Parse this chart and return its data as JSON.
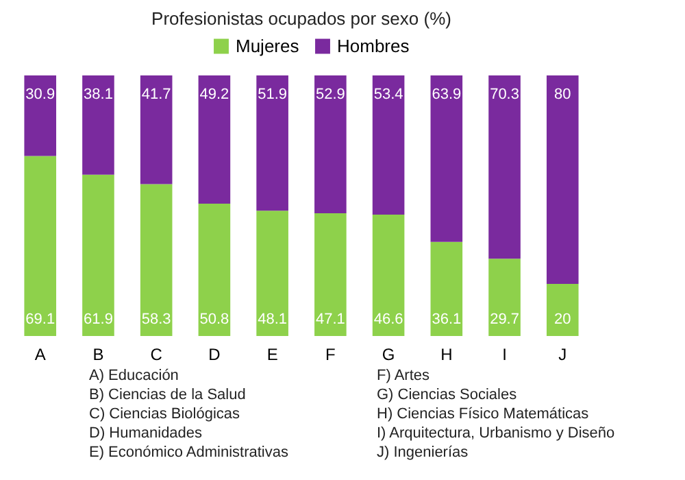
{
  "chart_data": {
    "type": "bar",
    "title": "Profesionistas ocupados por sexo (%)",
    "stacked": true,
    "data_labels": true,
    "legend": "top",
    "tick_labels": "x",
    "grid": false,
    "ylim": [
      0,
      100
    ],
    "categories": [
      "A",
      "B",
      "C",
      "D",
      "E",
      "F",
      "G",
      "H",
      "I",
      "J"
    ],
    "series": [
      {
        "name": "Mujeres",
        "color": "#8ed14b",
        "values": [
          69.1,
          61.9,
          58.3,
          50.8,
          48.1,
          47.1,
          46.6,
          36.1,
          29.7,
          20
        ]
      },
      {
        "name": "Hombres",
        "color": "#7a2a9e",
        "values": [
          30.9,
          38.1,
          41.7,
          49.2,
          51.9,
          52.9,
          53.4,
          63.9,
          70.3,
          80
        ]
      }
    ],
    "annotations": [
      "A) Educación",
      "B) Ciencias de la Salud",
      "C) Ciencias  Biológicas",
      "D) Humanidades",
      "E) Económico Administrativas",
      "F) Artes",
      "G) Ciencias Sociales",
      "H) Ciencias Físico Matemáticas",
      "I) Arquitectura, Urbanismo y Diseño",
      "J) Ingenierías"
    ]
  }
}
